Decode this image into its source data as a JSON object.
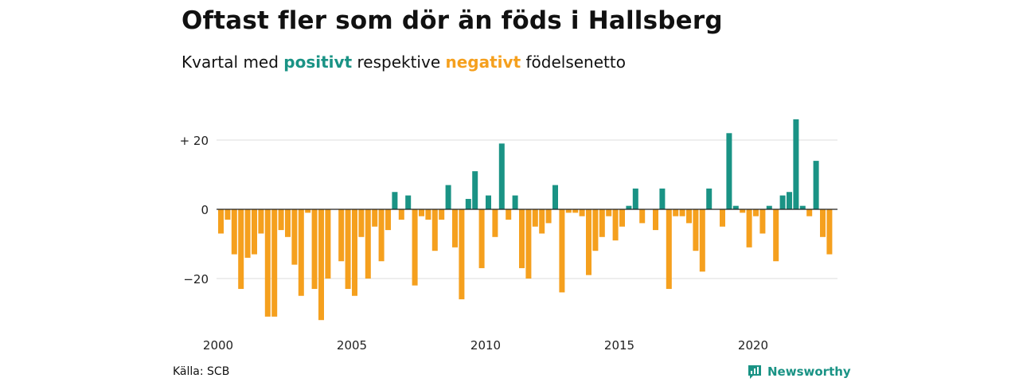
{
  "title": "Oftast fler som dör än föds i Hallsberg",
  "subtitle": {
    "prefix": "Kvartal med",
    "positive_word": "positivt",
    "middle": "respektive",
    "negative_word": "negativt",
    "suffix": "födelsenetto"
  },
  "source": "Källa: SCB",
  "brand": "Newsworthy",
  "colors": {
    "positive": "#1a9385",
    "negative": "#f5a01e",
    "grid": "#dddddd",
    "axis": "#222222"
  },
  "chart_data": {
    "type": "bar",
    "ylim": [
      -35,
      30
    ],
    "yticks": [
      20,
      0,
      -20
    ],
    "ytick_labels": [
      "+ 20",
      "0",
      "−20"
    ],
    "xticks": [
      2000,
      2005,
      2010,
      2015,
      2020
    ],
    "xtick_labels": [
      "2000",
      "2005",
      "2010",
      "2015",
      "2020"
    ],
    "start_year": 2000,
    "quarters_per_year": 4,
    "grid": true,
    "values": [
      -7,
      -3,
      -13,
      -23,
      -14,
      -13,
      -7,
      -31,
      -31,
      -6,
      -8,
      -16,
      -25,
      -1,
      -23,
      -32,
      -20,
      0,
      -15,
      -23,
      -25,
      -8,
      -20,
      -5,
      -15,
      -6,
      5,
      -3,
      4,
      -22,
      -2,
      -3,
      -12,
      -3,
      7,
      -11,
      -26,
      3,
      11,
      -17,
      4,
      -8,
      19,
      -3,
      4,
      -17,
      -20,
      -5,
      -7,
      -4,
      7,
      -24,
      -1,
      -1,
      -2,
      -19,
      -12,
      -8,
      -2,
      -9,
      -5,
      1,
      6,
      -4,
      0,
      -6,
      6,
      -23,
      -2,
      -2,
      -4,
      -12,
      -18,
      6,
      0,
      -5,
      22,
      1,
      -1,
      -11,
      -2,
      -7,
      1,
      -15,
      4,
      5,
      26,
      1,
      -2,
      14,
      -8,
      -13
    ]
  }
}
